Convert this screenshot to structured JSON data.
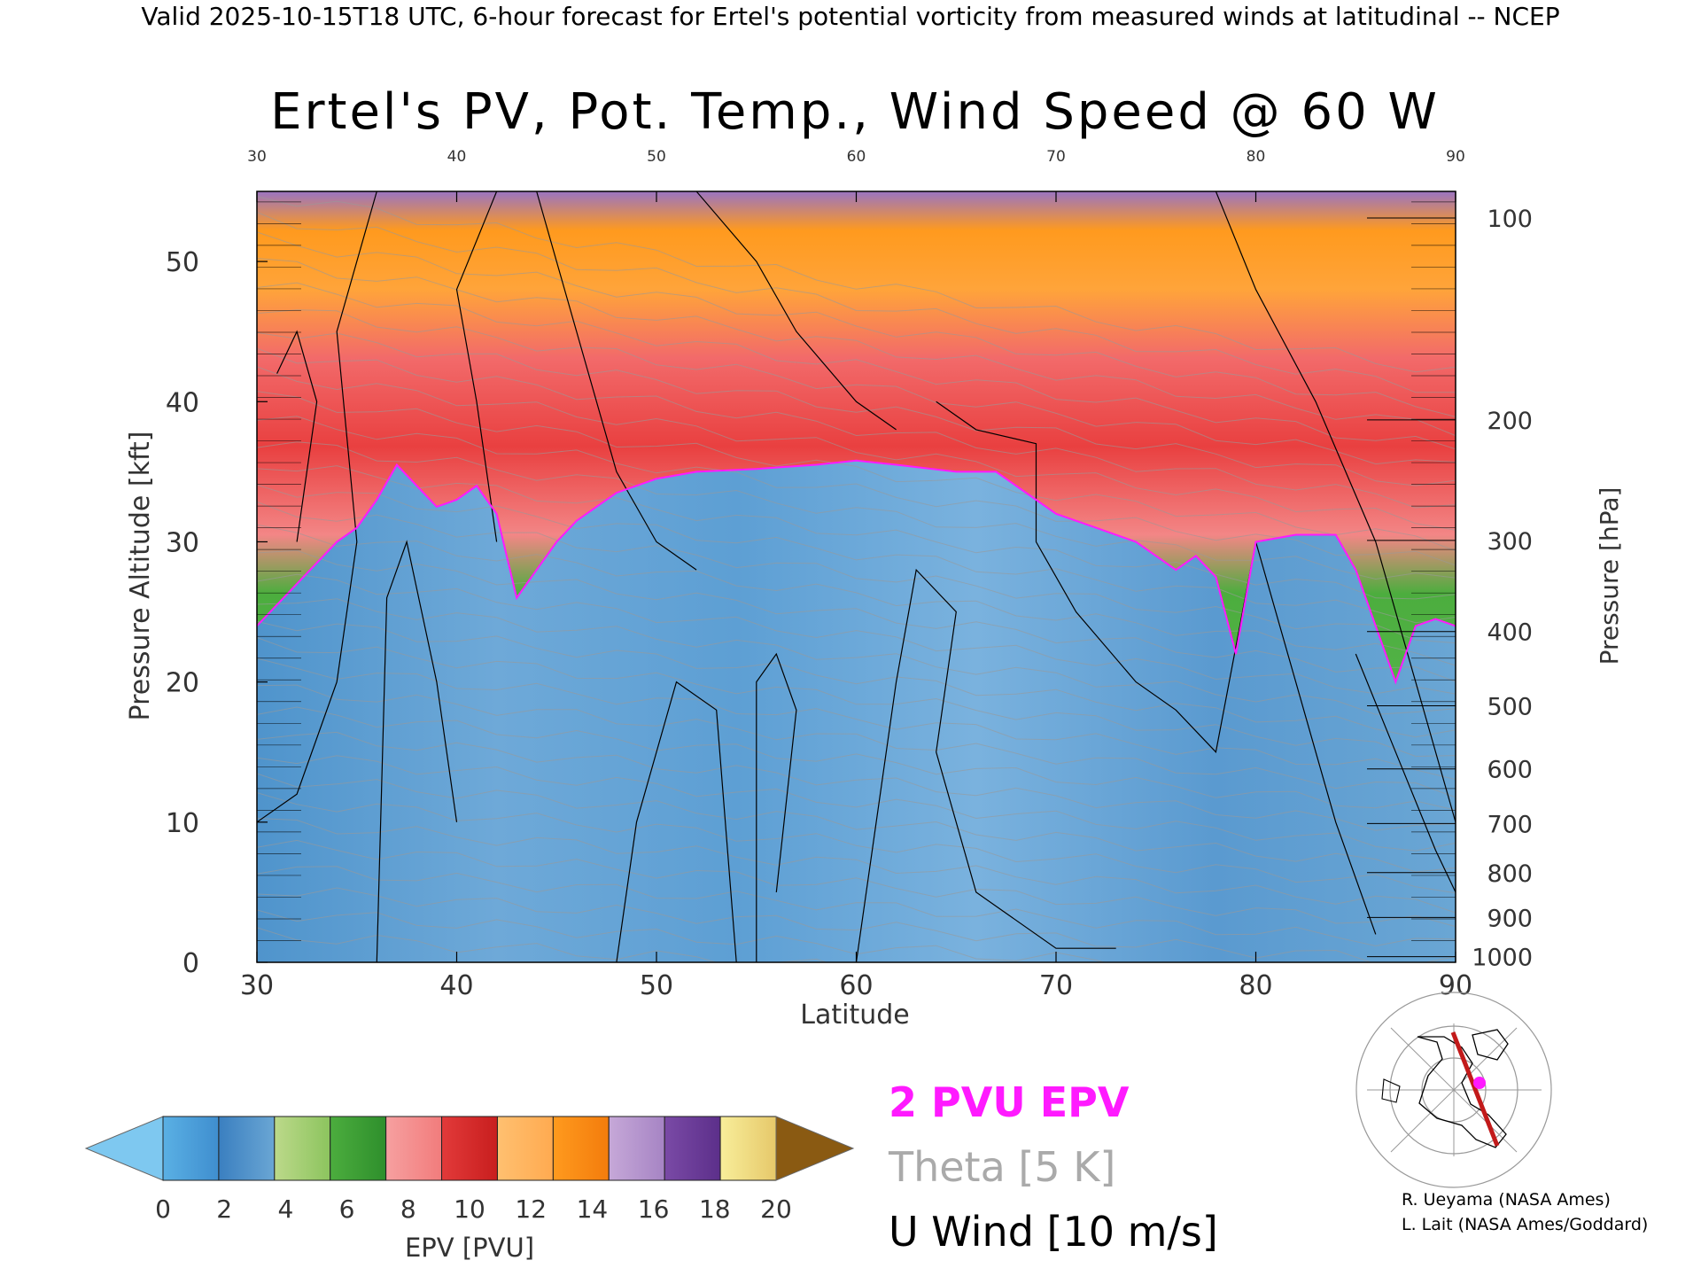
{
  "header_text": "Valid 2025-10-15T18 UTC, 6-hour forecast for Ertel's potential vorticity from measured winds at latitudinal -- NCEP",
  "chart_data": {
    "type": "heatmap",
    "title": "Ertel's PV, Pot. Temp., Wind Speed @ 60 W",
    "xlabel": "Latitude",
    "ylabel": "Pressure Altitude [kft]",
    "y2label": "Pressure [hPa]",
    "xlim": [
      30,
      90
    ],
    "ylim": [
      0,
      55
    ],
    "x_ticks": [
      30,
      40,
      50,
      60,
      70,
      80,
      90
    ],
    "y_ticks": [
      0,
      10,
      20,
      30,
      40,
      50
    ],
    "pressure_ticks": [
      {
        "label": "100",
        "kft": 53.1
      },
      {
        "label": "200",
        "kft": 38.7
      },
      {
        "label": "300",
        "kft": 30.1
      },
      {
        "label": "400",
        "kft": 23.6
      },
      {
        "label": "500",
        "kft": 18.3
      },
      {
        "label": "600",
        "kft": 13.8
      },
      {
        "label": "700",
        "kft": 9.9
      },
      {
        "label": "800",
        "kft": 6.4
      },
      {
        "label": "900",
        "kft": 3.2
      },
      {
        "label": "1000",
        "kft": 0.4
      }
    ],
    "tropopause_2pvu_kft": [
      [
        30,
        24
      ],
      [
        32,
        27
      ],
      [
        34,
        30
      ],
      [
        35,
        31
      ],
      [
        36,
        33
      ],
      [
        37,
        35.5
      ],
      [
        38,
        34
      ],
      [
        39,
        32.5
      ],
      [
        40,
        33
      ],
      [
        41,
        34
      ],
      [
        42,
        32
      ],
      [
        43,
        26
      ],
      [
        44,
        28
      ],
      [
        45,
        30
      ],
      [
        46,
        31.5
      ],
      [
        47,
        32.5
      ],
      [
        48,
        33.5
      ],
      [
        50,
        34.5
      ],
      [
        52,
        35
      ],
      [
        55,
        35.2
      ],
      [
        58,
        35.5
      ],
      [
        60,
        35.8
      ],
      [
        62,
        35.5
      ],
      [
        65,
        35
      ],
      [
        67,
        35
      ],
      [
        69,
        33
      ],
      [
        70,
        32
      ],
      [
        72,
        31
      ],
      [
        74,
        30
      ],
      [
        76,
        28
      ],
      [
        77,
        29
      ],
      [
        78,
        27.5
      ],
      [
        79,
        22
      ],
      [
        80,
        30
      ],
      [
        82,
        30.5
      ],
      [
        84,
        30.5
      ],
      [
        85,
        28
      ],
      [
        86,
        24
      ],
      [
        87,
        20
      ],
      [
        88,
        24
      ],
      [
        89,
        24.5
      ],
      [
        90,
        24
      ]
    ],
    "legend": {
      "epv_contour": "2 PVU EPV",
      "theta": "Theta [5 K]",
      "u_wind": "U Wind [10 m/s]"
    },
    "colorbar": {
      "label": "EPV [PVU]",
      "ticks": [
        "0",
        "2",
        "4",
        "6",
        "8",
        "10",
        "12",
        "14",
        "16",
        "18",
        "20"
      ],
      "under_color": "#7ec8f0",
      "over_color": "#8a5a12",
      "colors": [
        [
          "#5ab0e4",
          "#3f8ecf"
        ],
        [
          "#3a7fc0",
          "#6aa6d4"
        ],
        [
          "#bcd98a",
          "#8cc45e"
        ],
        [
          "#4cad3e",
          "#2e8f2c"
        ],
        [
          "#f6a0a0",
          "#f27c7c"
        ],
        [
          "#e23a3a",
          "#c81e1e"
        ],
        [
          "#ffc070",
          "#ffaa50"
        ],
        [
          "#ff9a1e",
          "#f37c0c"
        ],
        [
          "#c6a8d8",
          "#a684c4"
        ],
        [
          "#7a4aa6",
          "#5c2f8a"
        ],
        [
          "#f8ee9a",
          "#e6c86a"
        ]
      ]
    },
    "colors": {
      "troposphere": "#5d9fd4",
      "strat_green": "#52b347",
      "strat_red": "#e94040",
      "strat_pink": "#f38686",
      "strat_orange": "#ffa43a",
      "strat_purple": "#9a74c2",
      "pv_contour": "#ff1aff",
      "theta": "#999999",
      "wind": "#000000"
    }
  },
  "credits": [
    "R. Ueyama (NASA Ames)",
    "L. Lait (NASA Ames/Goddard)"
  ]
}
